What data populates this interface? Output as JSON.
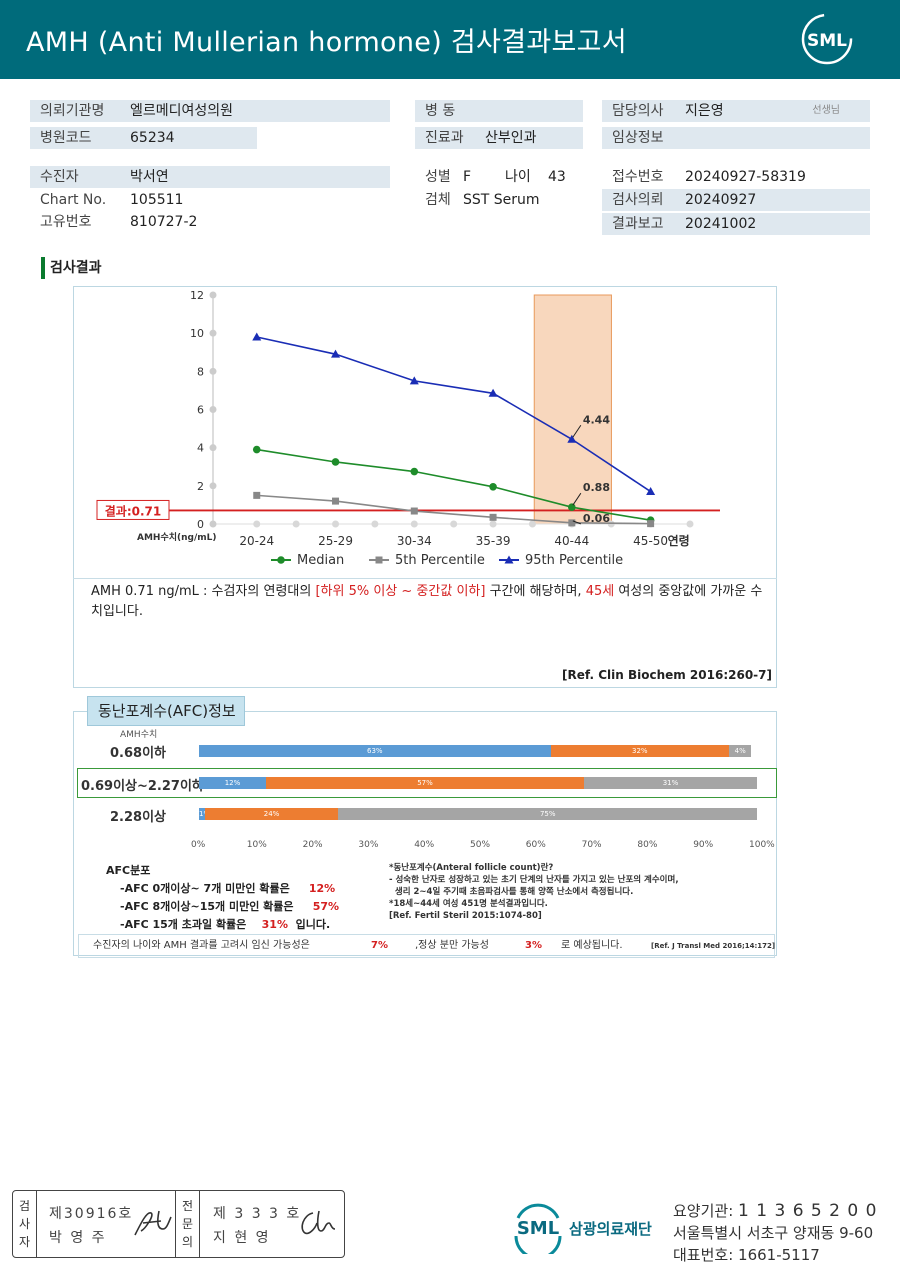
{
  "header": {
    "title": "AMH (Anti Mullerian hormone) 검사결과보고서",
    "logo": "SML"
  },
  "info": {
    "institution_label": "의뢰기관명",
    "institution": "엘르메디여성의원",
    "hospital_code_label": "병원코드",
    "hospital_code": "65234",
    "ward_label": "병  동",
    "ward": "",
    "dept_label": "진료과",
    "dept": "산부인과",
    "doctor_label": "담당의사",
    "doctor": "지은영",
    "doctor_suffix": "선생님",
    "clinical_label": "임상정보",
    "clinical": "",
    "patient_label": "수진자",
    "patient": "박서연",
    "chart_label": "Chart No.",
    "chart_no": "105511",
    "uid_label": "고유번호",
    "uid": "810727-2",
    "sex_label": "성별",
    "sex": "F",
    "age_label": "나이",
    "age": "43",
    "specimen_label": "검체",
    "specimen": "SST Serum",
    "receipt_label": "접수번호",
    "receipt": "20240927-58319",
    "request_label": "검사의뢰",
    "request_date": "20240927",
    "report_label": "결과보고",
    "report_date": "20241002"
  },
  "section_title": "검사결과",
  "chart_data": {
    "type": "line",
    "categories": [
      "20-24",
      "25-29",
      "30-34",
      "35-39",
      "40-44",
      "45-50"
    ],
    "xlabel": "연령",
    "ylabel": "AMH수치(ng/mL)",
    "ylim": [
      0,
      12
    ],
    "yticks": [
      0,
      2,
      4,
      6,
      8,
      10,
      12
    ],
    "series": [
      {
        "name": "Median",
        "color": "#1e8c2a",
        "values": [
          3.9,
          3.25,
          2.75,
          1.95,
          0.88,
          0.2
        ]
      },
      {
        "name": "5th Percentile",
        "color": "#888888",
        "values": [
          1.5,
          1.2,
          0.68,
          0.35,
          0.06,
          0.02
        ]
      },
      {
        "name": "95th Percentile",
        "color": "#1a2db5",
        "values": [
          9.8,
          8.9,
          7.5,
          6.85,
          4.44,
          1.7
        ]
      }
    ],
    "highlight_category": "40-44",
    "result_line": {
      "value": 0.71,
      "label": "결과:0.71",
      "color": "#d42020"
    },
    "annotations": [
      {
        "category": "40-44",
        "value": 4.44,
        "text": "4.44"
      },
      {
        "category": "40-44",
        "value": 0.88,
        "text": "0.88"
      },
      {
        "category": "40-44",
        "value": 0.06,
        "text": "0.06"
      }
    ],
    "grid": false,
    "legend": "bottom"
  },
  "interpretation": {
    "part1": "AMH  0.71 ng/mL : 수검자의 연령대의 ",
    "range": "[하위 5% 이상 ~ 중간값 이하]",
    "part2": " 구간에 해당하며, ",
    "age": "45세",
    "part3": " 여성의 중앙값에 가까운 수치입니다."
  },
  "ref1": "[Ref. Clin Biochem 2016:260-7]",
  "afc": {
    "tab": "동난포계수(AFC)정보",
    "amh_label": "AMH수치",
    "rows": [
      {
        "label": "0.68이하",
        "segments": [
          {
            "pct": 63,
            "text": "63%"
          },
          {
            "pct": 32,
            "text": "32%"
          },
          {
            "pct": 4,
            "text": "4%"
          }
        ]
      },
      {
        "label": "0.69이상~2.27이하",
        "segments": [
          {
            "pct": 12,
            "text": "12%"
          },
          {
            "pct": 57,
            "text": "57%"
          },
          {
            "pct": 31,
            "text": "31%"
          }
        ]
      },
      {
        "label": "2.28이상",
        "segments": [
          {
            "pct": 1,
            "text": "1%"
          },
          {
            "pct": 24,
            "text": "24%"
          },
          {
            "pct": 75,
            "text": "75%"
          }
        ]
      }
    ],
    "segment_colors": [
      "#5b9bd5",
      "#ed7d31",
      "#a5a5a5"
    ],
    "axis_ticks": [
      "0%",
      "10%",
      "20%",
      "30%",
      "40%",
      "50%",
      "60%",
      "70%",
      "80%",
      "90%",
      "100%"
    ],
    "dist_title": "AFC분포",
    "dist": [
      {
        "text": "-AFC 0개이상~ 7개 미만인 확률은",
        "pct": "12%",
        "tail": ""
      },
      {
        "text": "-AFC 8개이상~15개 미만인 확률은",
        "pct": "57%",
        "tail": ""
      },
      {
        "text": "-AFC 15개 초과일 확률은",
        "pct": "31%",
        "tail": "입니다."
      }
    ],
    "definition": [
      "*동난포계수(Anteral follicle count)란?",
      "- 성숙한 난자로 성장하고 있는 초기 단계의 난자를 가지고 있는 난포의 계수이며,",
      "  생리 2~4일 주기때 초음파검사를 통해 양쪽 난소에서 측정됩니다.",
      "*18세~44세 여성 451명 분석결과입니다.",
      "[Ref. Fertil Steril 2015:1074-80]"
    ]
  },
  "final": {
    "part1": "수진자의  나이와 AMH 결과를 고려시 임신 가능성은",
    "pregnancy": "7%",
    "part2": ",정상 분만 가능성",
    "delivery": "3%",
    "part3": "로 예상됩니다.",
    "ref": "[Ref. J Transl Med 2016;14:172]"
  },
  "signatures": {
    "left_role": "검사자",
    "left_no": "제30916호",
    "left_name": "박  영  주",
    "right_role": "전문의",
    "right_no": "제 3 3 3 호",
    "right_name": "지  현  영"
  },
  "footer": {
    "org_name": "삼광의료재단",
    "org_logo": "SML",
    "code_label": "요양기관:",
    "code": "1 1 3 6 5 2 0 0",
    "address": "서울특별시 서초구 양재동 9-60",
    "phone_label": "대표번호:",
    "phone": "1661-5117"
  }
}
